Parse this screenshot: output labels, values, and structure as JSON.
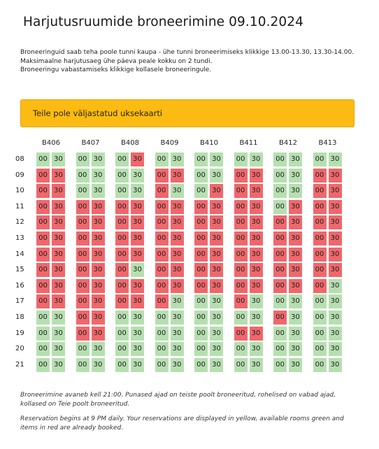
{
  "page": {
    "title": "Harjutusruumide broneerimine 09.10.2024"
  },
  "info": {
    "line1": "Broneeringuid saab teha poole tunni kaupa - ühe tunni broneerimiseks klikkige 13.00-13.30, 13.30-14.00.",
    "line2": "Maksimaalne harjutusaeg ühe päeva peale kokku on 2 tundi.",
    "line3": "Broneeringu vabastamiseks klikkige kollasele broneeringule."
  },
  "alert": {
    "text": "Teile pole väljastatud uksekaarti",
    "color": "#fbbb12"
  },
  "colors": {
    "free": "#b6dfb0",
    "booked": "#f0676b",
    "mine": "#fbd23a"
  },
  "schedule": {
    "rooms": [
      "B406",
      "B407",
      "B408",
      "B409",
      "B410",
      "B411",
      "B412",
      "B413"
    ],
    "hours": [
      "08",
      "09",
      "10",
      "11",
      "12",
      "13",
      "14",
      "15",
      "16",
      "17",
      "18",
      "19",
      "20",
      "21"
    ],
    "half_labels": [
      "00",
      "30"
    ],
    "status_legend": {
      "F": "free",
      "B": "booked"
    },
    "slots": [
      [
        "FF",
        "FF",
        "FB",
        "FF",
        "FF",
        "FF",
        "FF",
        "FF"
      ],
      [
        "BB",
        "FF",
        "FF",
        "BB",
        "FF",
        "BB",
        "FF",
        "BB"
      ],
      [
        "BB",
        "FF",
        "FF",
        "BF",
        "FB",
        "BB",
        "FF",
        "BB"
      ],
      [
        "BB",
        "BB",
        "BB",
        "BB",
        "BB",
        "BB",
        "FB",
        "BB"
      ],
      [
        "BB",
        "BB",
        "BB",
        "BB",
        "BB",
        "BB",
        "BB",
        "BB"
      ],
      [
        "BB",
        "BB",
        "BB",
        "BB",
        "BB",
        "BB",
        "BB",
        "BB"
      ],
      [
        "BB",
        "BB",
        "BB",
        "BB",
        "BB",
        "BB",
        "BB",
        "BB"
      ],
      [
        "BB",
        "BB",
        "BF",
        "BB",
        "BB",
        "BB",
        "BB",
        "BB"
      ],
      [
        "BB",
        "BB",
        "BB",
        "BB",
        "BB",
        "BB",
        "BB",
        "BF"
      ],
      [
        "BB",
        "BB",
        "BB",
        "BF",
        "FF",
        "BF",
        "FF",
        "FF"
      ],
      [
        "FF",
        "BB",
        "FF",
        "FF",
        "FF",
        "FF",
        "BF",
        "FF"
      ],
      [
        "FF",
        "BB",
        "FF",
        "FF",
        "FF",
        "BB",
        "FF",
        "FF"
      ],
      [
        "FF",
        "FF",
        "FF",
        "FF",
        "FF",
        "FF",
        "FF",
        "FF"
      ],
      [
        "FF",
        "FF",
        "FF",
        "FF",
        "FF",
        "FF",
        "FF",
        "FF"
      ]
    ]
  },
  "notes": {
    "et": "Broneerimine avaneb kell 21:00. Punased ajad on teiste poolt broneeritud, rohelised on vabad ajad, kollased on Teie poolt broneeritud.",
    "en": "Reservation begins at 9 PM daily. Your reservations are displayed in yellow, available rooms green and items in red are already booked."
  }
}
